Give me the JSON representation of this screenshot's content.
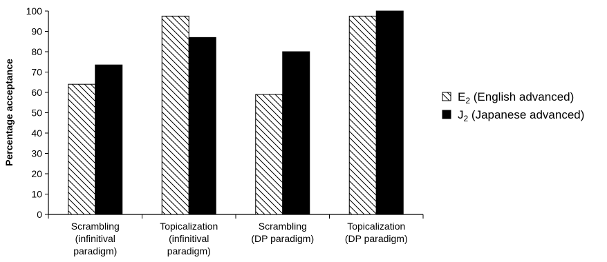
{
  "chart_data": {
    "type": "bar",
    "categories": [
      [
        "Scrambling",
        "(infinitival",
        "paradigm)"
      ],
      [
        "Topicalization",
        "(infinitival",
        "paradigm)"
      ],
      [
        "Scrambling",
        "(DP paradigm)"
      ],
      [
        "Topicalization",
        "(DP paradigm)"
      ]
    ],
    "series": [
      {
        "name": "E2 (English advanced)",
        "legend_main": "E",
        "legend_sub": "2",
        "legend_rest": " (English advanced)",
        "pattern": "hatched",
        "values": [
          64,
          97.5,
          59,
          97.5
        ]
      },
      {
        "name": "J2 (Japanese advanced)",
        "legend_main": "J",
        "legend_sub": "2",
        "legend_rest": " (Japanese advanced)",
        "pattern": "solid",
        "values": [
          73.5,
          87,
          80,
          100
        ]
      }
    ],
    "ylabel": "Percentage acceptance",
    "xlabel": "",
    "ylim": [
      0,
      100
    ],
    "yticks": [
      0,
      10,
      20,
      30,
      40,
      50,
      60,
      70,
      80,
      90,
      100
    ],
    "grid": false,
    "legend_position": "right"
  }
}
